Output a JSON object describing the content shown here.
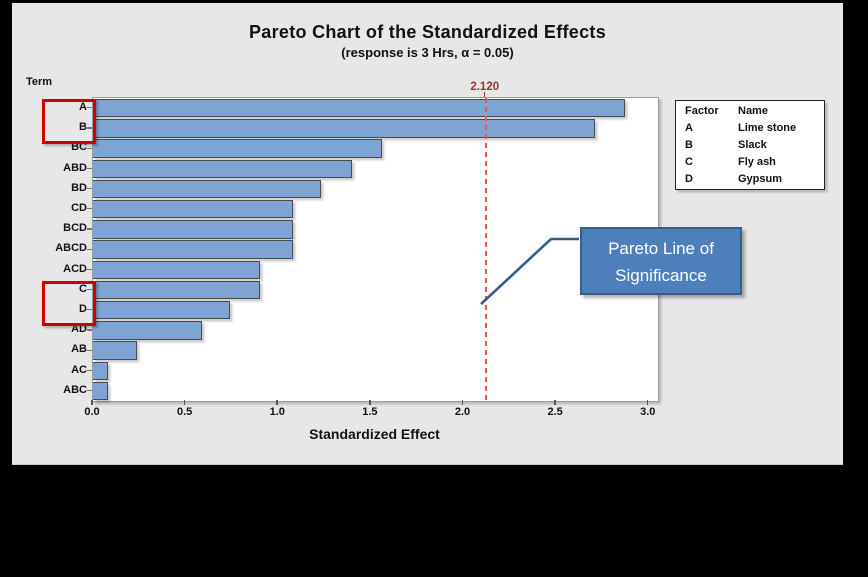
{
  "chart_data": {
    "type": "bar",
    "orientation": "horizontal",
    "title": "Pareto Chart of the Standardized Effects",
    "subtitle": "(response is 3 Hrs, α = 0.05)",
    "xlabel": "Standardized Effect",
    "ylabel": "Term",
    "categories": [
      "A",
      "B",
      "BC",
      "ABD",
      "BD",
      "CD",
      "BCD",
      "ABCD",
      "ACD",
      "C",
      "D",
      "AD",
      "AB",
      "AC",
      "ABC"
    ],
    "values": [
      2.87,
      2.71,
      1.56,
      1.4,
      1.23,
      1.08,
      1.08,
      1.08,
      0.9,
      0.9,
      0.74,
      0.59,
      0.24,
      0.08,
      0.08
    ],
    "xlim": [
      0,
      3.05
    ],
    "xticks": [
      0,
      0.5,
      1,
      1.5,
      2,
      2.5,
      3
    ],
    "xtick_labels": [
      "0.0",
      "0.5",
      "1.0",
      "1.5",
      "2.0",
      "2.5",
      "3.0"
    ],
    "reference_line": {
      "value": 2.12,
      "label": "2.120"
    },
    "grid": false,
    "legend_position": "right"
  },
  "legend": {
    "headers": [
      "Factor",
      "Name"
    ],
    "rows": [
      [
        "A",
        "Lime stone"
      ],
      [
        "B",
        "Slack"
      ],
      [
        "C",
        "Fly ash"
      ],
      [
        "D",
        "Gypsum"
      ]
    ]
  },
  "callout": {
    "line1": "Pareto Line of",
    "line2": "Significance"
  },
  "highlights": [
    {
      "terms": [
        "A",
        "B"
      ]
    },
    {
      "terms": [
        "C",
        "D"
      ]
    }
  ],
  "colors": {
    "bar_fill": "#7EA4D3",
    "bar_border": "#4A4A4A",
    "reference_line": "#E05A5A",
    "reference_label": "#9E3132",
    "highlight_box": "#CC0000",
    "callout_fill": "#4C80BC",
    "callout_border": "#385D8A",
    "panel_bg": "#E7E7E7"
  }
}
